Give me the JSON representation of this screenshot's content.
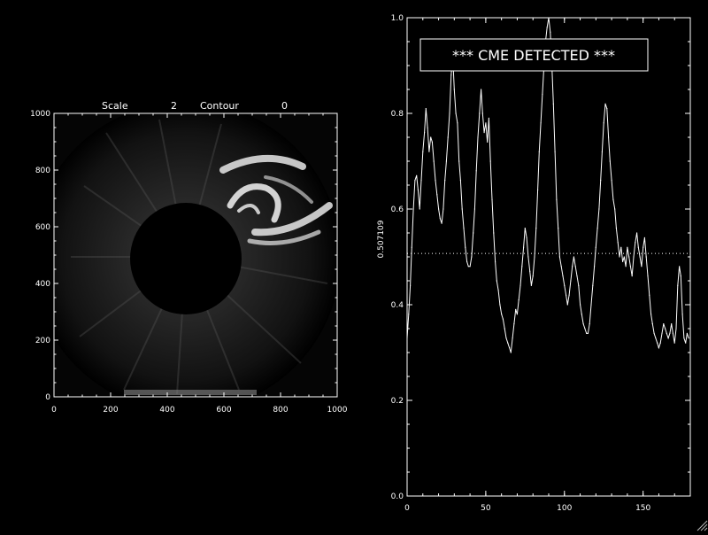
{
  "left_panel": {
    "scale_label": "Scale",
    "scale_value": "2",
    "contour_label": "Contour",
    "contour_value": "0",
    "x_ticks": [
      "0",
      "200",
      "400",
      "600",
      "800",
      "1000"
    ],
    "y_ticks": [
      "0",
      "200",
      "400",
      "600",
      "800",
      "1000"
    ],
    "xlim": [
      0,
      1000
    ],
    "ylim": [
      0,
      1000
    ]
  },
  "chart_data": {
    "type": "line",
    "title": "",
    "annotation": "*** CME DETECTED ***",
    "ylabel": "0.507109",
    "xlabel": "",
    "threshold": 0.507109,
    "xlim": [
      0,
      180
    ],
    "ylim": [
      0.0,
      1.0
    ],
    "x_ticks": [
      "0",
      "50",
      "100",
      "150"
    ],
    "y_ticks": [
      "0.0",
      "0.2",
      "0.4",
      "0.6",
      "0.8",
      "1.0"
    ],
    "x": [
      0,
      1,
      2,
      3,
      4,
      5,
      6,
      7,
      8,
      9,
      10,
      11,
      12,
      13,
      14,
      15,
      16,
      17,
      18,
      19,
      20,
      21,
      22,
      23,
      24,
      25,
      26,
      27,
      28,
      29,
      30,
      31,
      32,
      33,
      34,
      35,
      36,
      37,
      38,
      39,
      40,
      41,
      42,
      43,
      44,
      45,
      46,
      47,
      48,
      49,
      50,
      51,
      52,
      53,
      54,
      55,
      56,
      57,
      58,
      59,
      60,
      61,
      62,
      63,
      64,
      65,
      66,
      67,
      68,
      69,
      70,
      71,
      72,
      73,
      74,
      75,
      76,
      77,
      78,
      79,
      80,
      81,
      82,
      83,
      84,
      85,
      86,
      87,
      88,
      89,
      90,
      91,
      92,
      93,
      94,
      95,
      96,
      97,
      98,
      99,
      100,
      101,
      102,
      103,
      104,
      105,
      106,
      107,
      108,
      109,
      110,
      111,
      112,
      113,
      114,
      115,
      116,
      117,
      118,
      119,
      120,
      121,
      122,
      123,
      124,
      125,
      126,
      127,
      128,
      129,
      130,
      131,
      132,
      133,
      134,
      135,
      136,
      137,
      138,
      139,
      140,
      141,
      142,
      143,
      144,
      145,
      146,
      147,
      148,
      149,
      150,
      151,
      152,
      153,
      154,
      155,
      156,
      157,
      158,
      159,
      160,
      161,
      162,
      163,
      164,
      165,
      166,
      167,
      168,
      169,
      170,
      171,
      172,
      173,
      174,
      175,
      176,
      177,
      178,
      179
    ],
    "values": [
      0.33,
      0.38,
      0.44,
      0.52,
      0.6,
      0.66,
      0.67,
      0.64,
      0.6,
      0.66,
      0.72,
      0.76,
      0.81,
      0.77,
      0.72,
      0.75,
      0.74,
      0.7,
      0.66,
      0.63,
      0.6,
      0.58,
      0.57,
      0.6,
      0.66,
      0.7,
      0.75,
      0.8,
      0.88,
      0.92,
      0.85,
      0.8,
      0.78,
      0.7,
      0.66,
      0.6,
      0.56,
      0.52,
      0.49,
      0.48,
      0.48,
      0.5,
      0.55,
      0.6,
      0.68,
      0.75,
      0.8,
      0.85,
      0.8,
      0.76,
      0.78,
      0.74,
      0.79,
      0.7,
      0.62,
      0.55,
      0.49,
      0.45,
      0.43,
      0.4,
      0.38,
      0.37,
      0.35,
      0.33,
      0.32,
      0.31,
      0.3,
      0.33,
      0.36,
      0.39,
      0.38,
      0.41,
      0.44,
      0.48,
      0.52,
      0.56,
      0.54,
      0.5,
      0.47,
      0.44,
      0.46,
      0.5,
      0.56,
      0.64,
      0.72,
      0.78,
      0.84,
      0.9,
      0.95,
      0.98,
      1.0,
      0.97,
      0.9,
      0.82,
      0.72,
      0.62,
      0.56,
      0.5,
      0.48,
      0.46,
      0.44,
      0.42,
      0.4,
      0.42,
      0.45,
      0.48,
      0.5,
      0.48,
      0.46,
      0.44,
      0.4,
      0.38,
      0.36,
      0.35,
      0.34,
      0.34,
      0.36,
      0.4,
      0.44,
      0.48,
      0.52,
      0.56,
      0.6,
      0.66,
      0.72,
      0.78,
      0.82,
      0.81,
      0.75,
      0.7,
      0.66,
      0.62,
      0.6,
      0.56,
      0.53,
      0.5,
      0.52,
      0.49,
      0.5,
      0.48,
      0.52,
      0.5,
      0.48,
      0.46,
      0.5,
      0.53,
      0.55,
      0.52,
      0.5,
      0.48,
      0.52,
      0.54,
      0.5,
      0.46,
      0.42,
      0.38,
      0.36,
      0.34,
      0.33,
      0.32,
      0.31,
      0.32,
      0.34,
      0.36,
      0.35,
      0.34,
      0.33,
      0.34,
      0.36,
      0.34,
      0.32,
      0.35,
      0.44,
      0.48,
      0.46,
      0.38,
      0.33,
      0.32,
      0.34,
      0.33
    ]
  }
}
